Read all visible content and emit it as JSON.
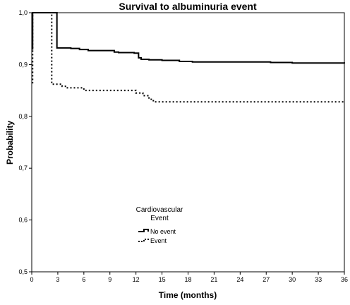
{
  "chart_data": {
    "type": "line",
    "title": "Survival to albuminuria event",
    "xlabel": "Time (months)",
    "ylabel": "Probability",
    "xlim": [
      0,
      36
    ],
    "ylim": [
      0.5,
      1.0
    ],
    "x_ticks": [
      0,
      3,
      6,
      9,
      12,
      15,
      18,
      21,
      24,
      27,
      30,
      33,
      36
    ],
    "y_ticks": [
      "0,5",
      "0,6",
      "0,7",
      "0,8",
      "0,9",
      "1,0"
    ],
    "y_tick_values": [
      0.5,
      0.6,
      0.7,
      0.8,
      0.9,
      1.0
    ],
    "grid": false,
    "legend": {
      "title_line1": "Cardiovascular",
      "title_line2": "Event",
      "placement": "bottom-left"
    },
    "series": [
      {
        "name": "No event",
        "style": "solid",
        "color": "#000000",
        "steps": [
          [
            0,
            0.93
          ],
          [
            0.1,
            1.0
          ],
          [
            2.9,
            0.932
          ],
          [
            4.5,
            0.931
          ],
          [
            5.5,
            0.929
          ],
          [
            6.5,
            0.927
          ],
          [
            9.5,
            0.924
          ],
          [
            10.0,
            0.923
          ],
          [
            11.8,
            0.922
          ],
          [
            12.3,
            0.913
          ],
          [
            12.6,
            0.91
          ],
          [
            13.5,
            0.909
          ],
          [
            15.0,
            0.908
          ],
          [
            17.0,
            0.906
          ],
          [
            18.5,
            0.905
          ],
          [
            27.5,
            0.904
          ],
          [
            30.0,
            0.903
          ],
          [
            36.0,
            0.902
          ]
        ]
      },
      {
        "name": "Event",
        "style": "dotted",
        "color": "#000000",
        "steps": [
          [
            0,
            0.865
          ],
          [
            0.1,
            1.0
          ],
          [
            2.3,
            0.862
          ],
          [
            3.5,
            0.858
          ],
          [
            4.0,
            0.855
          ],
          [
            6.0,
            0.85
          ],
          [
            12.0,
            0.845
          ],
          [
            12.8,
            0.84
          ],
          [
            13.5,
            0.833
          ],
          [
            14.0,
            0.828
          ],
          [
            36.0,
            0.828
          ]
        ]
      }
    ]
  }
}
